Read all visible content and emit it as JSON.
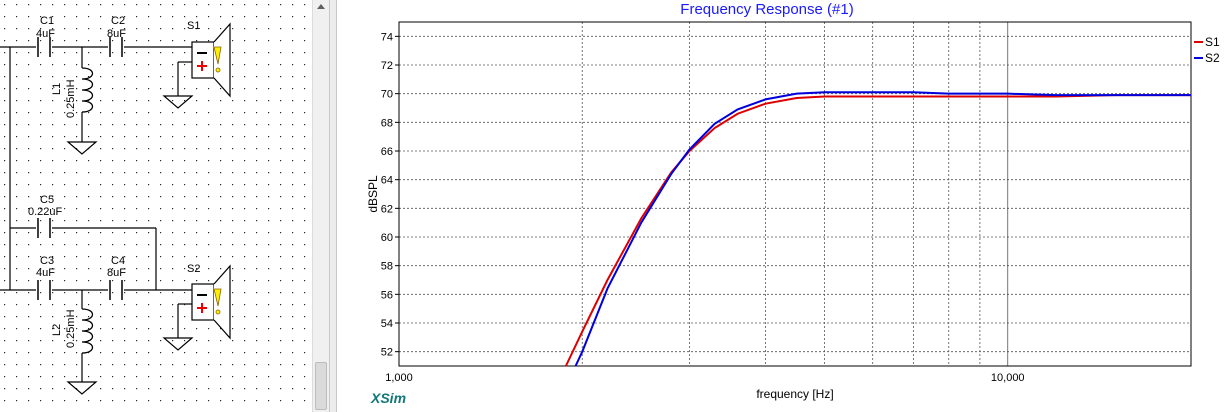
{
  "app": {
    "brand": "XSim"
  },
  "schematic": {
    "components": [
      {
        "id": "C1",
        "value": "4uF"
      },
      {
        "id": "C2",
        "value": "8uF"
      },
      {
        "id": "L1",
        "value": "0.25mH"
      },
      {
        "id": "S1"
      },
      {
        "id": "C5",
        "value": "0.22uF"
      },
      {
        "id": "C3",
        "value": "4uF"
      },
      {
        "id": "C4",
        "value": "8uF"
      },
      {
        "id": "L2",
        "value": "0.25mH"
      },
      {
        "id": "S2"
      }
    ]
  },
  "chart_data": {
    "type": "line",
    "title": "Frequency Response (#1)",
    "xlabel": "frequency [Hz]",
    "ylabel": "dBSPL",
    "xscale": "log",
    "xlim": [
      1000,
      20000
    ],
    "ylim": [
      51,
      75
    ],
    "xtick_labels": [
      {
        "value": 1000,
        "label": "1,000"
      },
      {
        "value": 10000,
        "label": "10,000"
      }
    ],
    "ytick_labels": [
      "52",
      "54",
      "56",
      "58",
      "60",
      "62",
      "64",
      "66",
      "68",
      "70",
      "72",
      "74"
    ],
    "grid": true,
    "legend_position": "top-right",
    "series": [
      {
        "name": "S1",
        "color": "#dd0000",
        "x": [
          1880,
          2000,
          2200,
          2500,
          2800,
          3000,
          3300,
          3600,
          4000,
          4500,
          5000,
          6000,
          7000,
          8000,
          10000,
          12000,
          15000,
          20000
        ],
        "y": [
          51.0,
          53.4,
          57.0,
          61.3,
          64.5,
          66.0,
          67.6,
          68.6,
          69.3,
          69.7,
          69.8,
          69.8,
          69.8,
          69.8,
          69.8,
          69.8,
          69.9,
          69.9
        ]
      },
      {
        "name": "S2",
        "color": "#0000dd",
        "x": [
          1950,
          2000,
          2200,
          2500,
          2800,
          3000,
          3300,
          3600,
          4000,
          4500,
          5000,
          6000,
          7000,
          8000,
          10000,
          12000,
          15000,
          20000
        ],
        "y": [
          51.0,
          52.0,
          56.4,
          61.0,
          64.4,
          66.1,
          67.9,
          68.9,
          69.6,
          70.0,
          70.1,
          70.1,
          70.1,
          70.0,
          70.0,
          69.9,
          69.9,
          69.9
        ]
      }
    ]
  }
}
